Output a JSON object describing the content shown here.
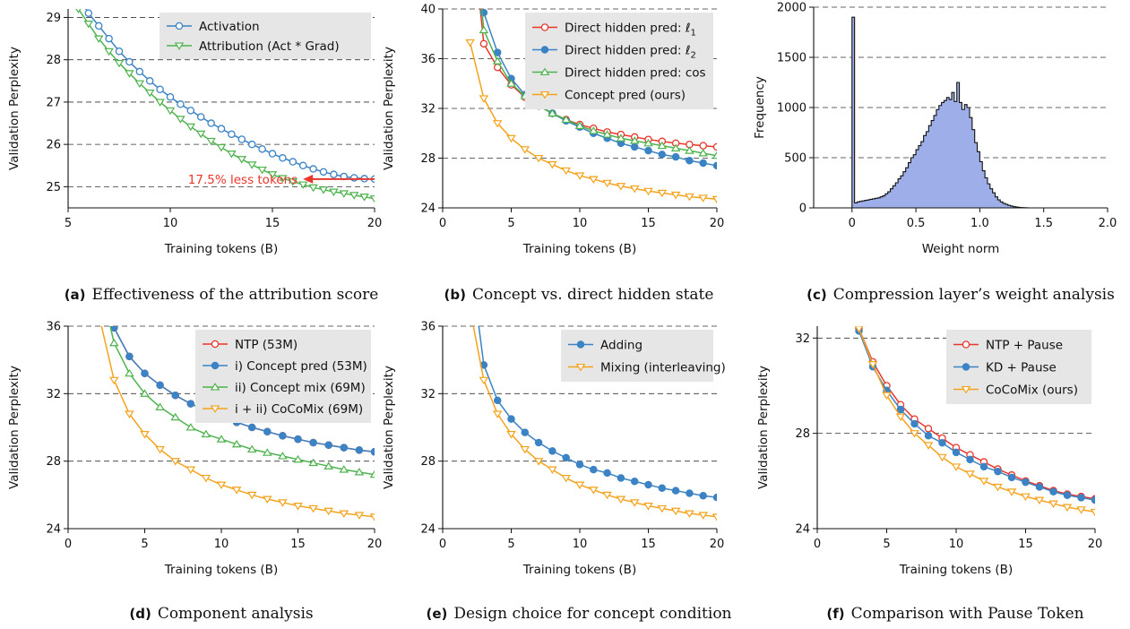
{
  "colors": {
    "blue": "#3b83c4",
    "green": "#4db34d",
    "red": "#e8372c",
    "orange": "#f5a21b",
    "hist_fill": "#9daee8",
    "legend_bg": "#e6e6e6"
  },
  "chart_data": [
    {
      "id": "a",
      "type": "line",
      "caption_letter": "(a)",
      "caption_text": "Effectiveness of the attribution score",
      "xlabel": "Training tokens (B)",
      "ylabel": "Validation Perplexity",
      "xlim": [
        5,
        20
      ],
      "ylim": [
        24.5,
        29.2
      ],
      "xticks": [
        5,
        10,
        15,
        20
      ],
      "yticks": [
        25,
        26,
        27,
        28,
        29
      ],
      "grid": "horizontal dashed",
      "legend_position": "top-right",
      "annotation": {
        "text": "17.5% less tokens",
        "arrow_from": [
          20,
          25.18
        ],
        "arrow_to": [
          16.5,
          25.18
        ]
      },
      "series": [
        {
          "name": "Activation",
          "color": "blue",
          "marker": "circle",
          "x": [
            5.5,
            6,
            6.5,
            7,
            7.5,
            8,
            8.5,
            9,
            9.5,
            10,
            10.5,
            11,
            11.5,
            12,
            12.5,
            13,
            13.5,
            14,
            14.5,
            15,
            15.5,
            16,
            16.5,
            17,
            17.5,
            18,
            18.5,
            19,
            19.5,
            20
          ],
          "values": [
            29.5,
            29.1,
            28.8,
            28.5,
            28.2,
            27.95,
            27.72,
            27.5,
            27.3,
            27.12,
            26.95,
            26.8,
            26.65,
            26.5,
            26.37,
            26.24,
            26.12,
            26.0,
            25.89,
            25.78,
            25.68,
            25.59,
            25.5,
            25.42,
            25.35,
            25.29,
            25.24,
            25.21,
            25.19,
            25.18
          ]
        },
        {
          "name": "Attribution (Act * Grad)",
          "color": "green",
          "marker": "triangle-down",
          "x": [
            5.5,
            6,
            6.5,
            7,
            7.5,
            8,
            8.5,
            9,
            9.5,
            10,
            10.5,
            11,
            11.5,
            12,
            12.5,
            13,
            13.5,
            14,
            14.5,
            15,
            15.5,
            16,
            16.5,
            17,
            17.5,
            18,
            18.5,
            19,
            19.5,
            20
          ],
          "values": [
            29.2,
            28.85,
            28.5,
            28.2,
            27.92,
            27.68,
            27.44,
            27.22,
            27.0,
            26.8,
            26.6,
            26.42,
            26.25,
            26.08,
            25.93,
            25.78,
            25.65,
            25.52,
            25.4,
            25.29,
            25.2,
            25.12,
            25.05,
            24.98,
            24.93,
            24.88,
            24.84,
            24.8,
            24.76,
            24.72
          ]
        }
      ]
    },
    {
      "id": "b",
      "type": "line",
      "caption_letter": "(b)",
      "caption_text": "Concept vs. direct hidden state",
      "xlabel": "Training tokens (B)",
      "ylabel": "Validation Perplexity",
      "xlim": [
        0,
        20
      ],
      "ylim": [
        24,
        40
      ],
      "xticks": [
        0,
        5,
        10,
        15,
        20
      ],
      "yticks": [
        24,
        28,
        32,
        36,
        40
      ],
      "grid": "horizontal dashed",
      "legend_position": "top-right",
      "series": [
        {
          "name": "Direct hidden pred: ℓ1",
          "label_main": "Direct hidden pred: ℓ",
          "label_sub": "1",
          "color": "red",
          "marker": "circle",
          "x": [
            2,
            3,
            4,
            5,
            6,
            7,
            8,
            9,
            10,
            11,
            12,
            13,
            14,
            15,
            16,
            17,
            18,
            19,
            20
          ],
          "values": [
            48,
            37.2,
            35.3,
            33.9,
            32.9,
            32.2,
            31.6,
            31.1,
            30.7,
            30.4,
            30.1,
            29.9,
            29.7,
            29.5,
            29.35,
            29.2,
            29.1,
            29.0,
            28.9
          ]
        },
        {
          "name": "Direct hidden pred: ℓ2",
          "label_main": "Direct hidden pred: ℓ",
          "label_sub": "2",
          "color": "blue",
          "marker": "circle",
          "x": [
            2,
            3,
            4,
            5,
            6,
            7,
            8,
            9,
            10,
            11,
            12,
            13,
            14,
            15,
            16,
            17,
            18,
            19,
            20
          ],
          "values": [
            52,
            39.7,
            36.5,
            34.4,
            33.1,
            32.3,
            31.6,
            31.0,
            30.5,
            30.0,
            29.6,
            29.2,
            28.9,
            28.6,
            28.3,
            28.1,
            27.8,
            27.6,
            27.4
          ]
        },
        {
          "name": "Direct hidden pred: cos",
          "color": "green",
          "marker": "triangle-up",
          "x": [
            2,
            3,
            4,
            5,
            6,
            7,
            8,
            9,
            10,
            11,
            12,
            13,
            14,
            15,
            16,
            17,
            18,
            19,
            20
          ],
          "values": [
            50,
            38.3,
            35.8,
            34.0,
            33.0,
            32.2,
            31.6,
            31.1,
            30.6,
            30.2,
            29.9,
            29.6,
            29.4,
            29.2,
            29.0,
            28.8,
            28.6,
            28.4,
            28.2
          ]
        },
        {
          "name": "Concept pred (ours)",
          "color": "orange",
          "marker": "triangle-down",
          "x": [
            2,
            3,
            4,
            5,
            6,
            7,
            8,
            9,
            10,
            11,
            12,
            13,
            14,
            15,
            16,
            17,
            18,
            19,
            20
          ],
          "values": [
            37.3,
            32.8,
            30.8,
            29.6,
            28.7,
            28.0,
            27.5,
            27.0,
            26.6,
            26.3,
            26.0,
            25.75,
            25.55,
            25.35,
            25.2,
            25.05,
            24.9,
            24.8,
            24.7
          ]
        }
      ]
    },
    {
      "id": "c",
      "type": "histogram",
      "caption_letter": "(c)",
      "caption_text": "Compression layer’s weight analysis",
      "xlabel": "Weight norm",
      "ylabel": "Frequency",
      "xlim": [
        -0.3,
        2.0
      ],
      "ylim": [
        0,
        2000
      ],
      "xticks": [
        0,
        0.5,
        1.0,
        1.5,
        2.0
      ],
      "xtick_labels": [
        "0",
        "0.5",
        "1.0",
        "1.5",
        "2.0"
      ],
      "yticks": [
        0,
        500,
        1000,
        1500,
        2000
      ],
      "grid": "horizontal dashed",
      "bin_start": -0.02,
      "bin_width": 0.02,
      "counts": [
        0,
        1900,
        50,
        60,
        65,
        70,
        75,
        80,
        85,
        90,
        95,
        100,
        110,
        120,
        140,
        160,
        190,
        220,
        250,
        290,
        320,
        360,
        400,
        450,
        500,
        530,
        580,
        620,
        660,
        720,
        760,
        820,
        870,
        920,
        980,
        1020,
        1050,
        1070,
        1100,
        1080,
        1150,
        1060,
        1250,
        1050,
        980,
        1030,
        1000,
        900,
        780,
        650,
        560,
        460,
        370,
        300,
        240,
        190,
        150,
        110,
        80,
        60,
        45,
        35,
        25,
        18,
        12,
        8,
        5,
        3,
        2,
        1,
        0
      ]
    },
    {
      "id": "d",
      "type": "line",
      "caption_letter": "(d)",
      "caption_text": "Component analysis",
      "xlabel": "Training tokens (B)",
      "ylabel": "Validation Perplexity",
      "xlim": [
        0,
        20
      ],
      "ylim": [
        24,
        36
      ],
      "xticks": [
        0,
        5,
        10,
        15,
        20
      ],
      "yticks": [
        24,
        28,
        32,
        36
      ],
      "grid": "horizontal dashed",
      "legend_position": "top-right",
      "series": [
        {
          "name": "NTP (53M)",
          "color": "red",
          "marker": "circle",
          "x": [
            2,
            3,
            4,
            5,
            6,
            7,
            8,
            9,
            10,
            11,
            12,
            13,
            14,
            15,
            16,
            17,
            18,
            19,
            20
          ],
          "values": [
            40,
            35.9,
            34.2,
            33.2,
            32.5,
            31.9,
            31.4,
            31.0,
            30.6,
            30.3,
            30.0,
            29.75,
            29.5,
            29.3,
            29.1,
            28.95,
            28.8,
            28.65,
            28.55
          ]
        },
        {
          "name": "i) Concept pred (53M)",
          "color": "blue",
          "marker": "circle",
          "x": [
            2,
            3,
            4,
            5,
            6,
            7,
            8,
            9,
            10,
            11,
            12,
            13,
            14,
            15,
            16,
            17,
            18,
            19,
            20
          ],
          "values": [
            40,
            35.9,
            34.2,
            33.2,
            32.5,
            31.9,
            31.4,
            31.0,
            30.6,
            30.3,
            30.0,
            29.75,
            29.5,
            29.3,
            29.1,
            28.95,
            28.8,
            28.65,
            28.55
          ]
        },
        {
          "name": "ii) Concept mix (69M)",
          "color": "green",
          "marker": "triangle-up",
          "x": [
            2,
            3,
            4,
            5,
            6,
            7,
            8,
            9,
            10,
            11,
            12,
            13,
            14,
            15,
            16,
            17,
            18,
            19,
            20
          ],
          "values": [
            39,
            35.0,
            33.2,
            32.0,
            31.2,
            30.6,
            30.0,
            29.6,
            29.3,
            29.0,
            28.7,
            28.5,
            28.3,
            28.1,
            27.9,
            27.7,
            27.5,
            27.35,
            27.2
          ]
        },
        {
          "name": "i + ii) CoCoMix (69M)",
          "color": "orange",
          "marker": "triangle-down",
          "x": [
            2,
            3,
            4,
            5,
            6,
            7,
            8,
            9,
            10,
            11,
            12,
            13,
            14,
            15,
            16,
            17,
            18,
            19,
            20
          ],
          "values": [
            36.7,
            32.8,
            30.8,
            29.6,
            28.7,
            28.0,
            27.5,
            27.0,
            26.6,
            26.3,
            26.0,
            25.75,
            25.55,
            25.35,
            25.2,
            25.05,
            24.9,
            24.8,
            24.7
          ]
        }
      ]
    },
    {
      "id": "e",
      "type": "line",
      "caption_letter": "(e)",
      "caption_text": "Design choice for concept condition",
      "xlabel": "Training tokens (B)",
      "ylabel": "Validation Perplexity",
      "xlim": [
        0,
        20
      ],
      "ylim": [
        24,
        36
      ],
      "xticks": [
        0,
        5,
        10,
        15,
        20
      ],
      "yticks": [
        24,
        28,
        32,
        36
      ],
      "grid": "horizontal dashed",
      "legend_position": "top-right",
      "series": [
        {
          "name": "Adding",
          "color": "blue",
          "marker": "circle",
          "x": [
            2,
            3,
            4,
            5,
            6,
            7,
            8,
            9,
            10,
            11,
            12,
            13,
            14,
            15,
            16,
            17,
            18,
            19,
            20
          ],
          "values": [
            40,
            33.7,
            31.6,
            30.5,
            29.7,
            29.1,
            28.6,
            28.2,
            27.8,
            27.5,
            27.3,
            27.0,
            26.8,
            26.6,
            26.4,
            26.25,
            26.1,
            25.95,
            25.85
          ]
        },
        {
          "name": "Mixing (interleaving)",
          "color": "orange",
          "marker": "triangle-down",
          "x": [
            2,
            3,
            4,
            5,
            6,
            7,
            8,
            9,
            10,
            11,
            12,
            13,
            14,
            15,
            16,
            17,
            18,
            19,
            20
          ],
          "values": [
            37,
            32.8,
            30.8,
            29.6,
            28.7,
            28.0,
            27.5,
            27.0,
            26.6,
            26.3,
            26.0,
            25.75,
            25.55,
            25.35,
            25.2,
            25.05,
            24.9,
            24.8,
            24.7
          ]
        }
      ]
    },
    {
      "id": "f",
      "type": "line",
      "caption_letter": "(f)",
      "caption_text": "Comparison with Pause Token",
      "xlabel": "Training tokens (B)",
      "ylabel": "Validation Perplexity",
      "xlim": [
        0,
        20
      ],
      "ylim": [
        24,
        32.5
      ],
      "xticks": [
        0,
        5,
        10,
        15,
        20
      ],
      "yticks": [
        24,
        28,
        32
      ],
      "grid": "horizontal dashed",
      "legend_position": "top-right",
      "series": [
        {
          "name": "NTP + Pause",
          "color": "red",
          "marker": "circle",
          "x": [
            3,
            4,
            5,
            6,
            7,
            8,
            9,
            10,
            11,
            12,
            13,
            14,
            15,
            16,
            17,
            18,
            19,
            20
          ],
          "values": [
            32.4,
            31.0,
            30.0,
            29.2,
            28.6,
            28.2,
            27.8,
            27.4,
            27.1,
            26.8,
            26.5,
            26.25,
            26.0,
            25.8,
            25.6,
            25.45,
            25.35,
            25.25
          ]
        },
        {
          "name": "KD + Pause",
          "color": "blue",
          "marker": "circle",
          "x": [
            3,
            4,
            5,
            6,
            7,
            8,
            9,
            10,
            11,
            12,
            13,
            14,
            15,
            16,
            17,
            18,
            19,
            20
          ],
          "values": [
            32.3,
            30.8,
            29.8,
            29.0,
            28.4,
            27.9,
            27.6,
            27.2,
            26.9,
            26.6,
            26.4,
            26.15,
            25.95,
            25.75,
            25.55,
            25.4,
            25.3,
            25.2
          ]
        },
        {
          "name": "CoCoMix (ours)",
          "color": "orange",
          "marker": "triangle-down",
          "x": [
            3,
            4,
            5,
            6,
            7,
            8,
            9,
            10,
            11,
            12,
            13,
            14,
            15,
            16,
            17,
            18,
            19,
            20
          ],
          "values": [
            32.4,
            30.9,
            29.6,
            28.7,
            28.0,
            27.5,
            27.0,
            26.6,
            26.3,
            26.0,
            25.75,
            25.55,
            25.35,
            25.2,
            25.05,
            24.9,
            24.8,
            24.7
          ]
        }
      ]
    }
  ]
}
